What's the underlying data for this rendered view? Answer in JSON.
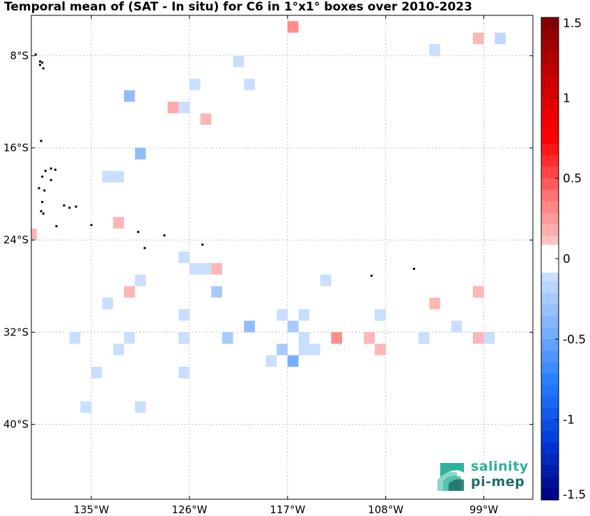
{
  "chart_data": {
    "type": "heatmap",
    "title": "Temporal mean of (SAT - In situ) for C6 in 1°x1° boxes over 2010-2023",
    "x_range_lon": [
      -140.5,
      -94.5
    ],
    "y_range_lat": [
      -4.5,
      -46.5
    ],
    "xticks": [
      {
        "lon": -135,
        "label": "135°W"
      },
      {
        "lon": -126,
        "label": "126°W"
      },
      {
        "lon": -117,
        "label": "117°W"
      },
      {
        "lon": -108,
        "label": "108°W"
      },
      {
        "lon": -99,
        "label": "99°W"
      }
    ],
    "yticks": [
      {
        "lat": -8,
        "label": "8°S"
      },
      {
        "lat": -16,
        "label": "16°S"
      },
      {
        "lat": -24,
        "label": "24°S"
      },
      {
        "lat": -32,
        "label": "32°S"
      },
      {
        "lat": -40,
        "label": "40°S"
      }
    ],
    "grid": true,
    "colorbar": {
      "min": -1.5,
      "max": 1.5,
      "ticks": [
        {
          "value": 1.5,
          "label": "1.5"
        },
        {
          "value": 1,
          "label": "1"
        },
        {
          "value": 0.5,
          "label": "0.5"
        },
        {
          "value": 0,
          "label": "0"
        },
        {
          "value": -0.5,
          "label": "-0.5"
        },
        {
          "value": -1,
          "label": "-1"
        },
        {
          "value": -1.5,
          "label": "-1.5"
        }
      ]
    },
    "cells": [
      {
        "lon": -116.5,
        "lat": -5.5,
        "value": 0.3
      },
      {
        "lon": -99.5,
        "lat": -6.5,
        "value": 0.15
      },
      {
        "lon": -97.5,
        "lat": -6.5,
        "value": -0.15
      },
      {
        "lon": -103.5,
        "lat": -7.5,
        "value": -0.1
      },
      {
        "lon": -121.5,
        "lat": -8.5,
        "value": -0.1
      },
      {
        "lon": -125.5,
        "lat": -10.5,
        "value": -0.1
      },
      {
        "lon": -120.5,
        "lat": -10.5,
        "value": -0.1
      },
      {
        "lon": -131.5,
        "lat": -11.5,
        "value": -0.35
      },
      {
        "lon": -127.5,
        "lat": -12.5,
        "value": 0.2
      },
      {
        "lon": -126.5,
        "lat": -12.5,
        "value": -0.1
      },
      {
        "lon": -124.5,
        "lat": -13.5,
        "value": 0.15
      },
      {
        "lon": -130.5,
        "lat": -16.5,
        "value": -0.35
      },
      {
        "lon": -133.5,
        "lat": -18.5,
        "value": -0.1
      },
      {
        "lon": -132.5,
        "lat": -18.5,
        "value": -0.1
      },
      {
        "lon": -132.5,
        "lat": -22.5,
        "value": 0.15
      },
      {
        "lon": -140.5,
        "lat": -23.5,
        "value": 0.15
      },
      {
        "lon": -126.5,
        "lat": -25.5,
        "value": -0.1
      },
      {
        "lon": -125.5,
        "lat": -26.5,
        "value": -0.1
      },
      {
        "lon": -124.5,
        "lat": -26.5,
        "value": -0.1
      },
      {
        "lon": -123.5,
        "lat": -26.5,
        "value": 0.15
      },
      {
        "lon": -130.5,
        "lat": -27.5,
        "value": -0.1
      },
      {
        "lon": -113.5,
        "lat": -27.5,
        "value": -0.1
      },
      {
        "lon": -131.5,
        "lat": -28.5,
        "value": 0.15
      },
      {
        "lon": -123.5,
        "lat": -28.5,
        "value": -0.25
      },
      {
        "lon": -99.5,
        "lat": -28.5,
        "value": 0.15
      },
      {
        "lon": -133.5,
        "lat": -29.5,
        "value": -0.1
      },
      {
        "lon": -103.5,
        "lat": -29.5,
        "value": 0.15
      },
      {
        "lon": -126.5,
        "lat": -30.5,
        "value": -0.1
      },
      {
        "lon": -117.5,
        "lat": -30.5,
        "value": -0.1
      },
      {
        "lon": -108.5,
        "lat": -30.5,
        "value": -0.1
      },
      {
        "lon": -120.5,
        "lat": -31.5,
        "value": -0.35
      },
      {
        "lon": -116.5,
        "lat": -31.5,
        "value": -0.25
      },
      {
        "lon": -101.5,
        "lat": -31.5,
        "value": -0.1
      },
      {
        "lon": -115.5,
        "lat": -30.5,
        "value": -0.1
      },
      {
        "lon": -136.5,
        "lat": -32.5,
        "value": -0.1
      },
      {
        "lon": -131.5,
        "lat": -32.5,
        "value": -0.1
      },
      {
        "lon": -126.5,
        "lat": -32.5,
        "value": -0.1
      },
      {
        "lon": -122.5,
        "lat": -32.5,
        "value": -0.25
      },
      {
        "lon": -115.5,
        "lat": -32.5,
        "value": -0.1
      },
      {
        "lon": -112.5,
        "lat": -32.5,
        "value": 0.3
      },
      {
        "lon": -109.5,
        "lat": -32.5,
        "value": 0.15
      },
      {
        "lon": -104.5,
        "lat": -32.5,
        "value": -0.1
      },
      {
        "lon": -99.5,
        "lat": -32.5,
        "value": 0.15
      },
      {
        "lon": -98.5,
        "lat": -32.5,
        "value": -0.1
      },
      {
        "lon": -132.5,
        "lat": -33.5,
        "value": -0.1
      },
      {
        "lon": -117.5,
        "lat": -33.5,
        "value": -0.25
      },
      {
        "lon": -115.5,
        "lat": -33.5,
        "value": -0.1
      },
      {
        "lon": -114.5,
        "lat": -33.5,
        "value": -0.1
      },
      {
        "lon": -108.5,
        "lat": -33.5,
        "value": 0.15
      },
      {
        "lon": -118.5,
        "lat": -34.5,
        "value": -0.1
      },
      {
        "lon": -116.5,
        "lat": -34.5,
        "value": -0.45
      },
      {
        "lon": -134.5,
        "lat": -35.5,
        "value": -0.1
      },
      {
        "lon": -126.5,
        "lat": -35.5,
        "value": -0.1
      },
      {
        "lon": -135.5,
        "lat": -38.5,
        "value": -0.1
      },
      {
        "lon": -130.5,
        "lat": -38.5,
        "value": -0.1
      }
    ],
    "land": [
      {
        "lon": -140.1,
        "lat": -7.9
      },
      {
        "lon": -139.7,
        "lat": -8.5
      },
      {
        "lon": -139.5,
        "lat": -8.6
      },
      {
        "lon": -139.7,
        "lat": -8.8
      },
      {
        "lon": -139.4,
        "lat": -9.1
      },
      {
        "lon": -139.6,
        "lat": -15.4
      },
      {
        "lon": -138.7,
        "lat": -17.8
      },
      {
        "lon": -138.3,
        "lat": -17.9
      },
      {
        "lon": -139.2,
        "lat": -18.0
      },
      {
        "lon": -139.5,
        "lat": -18.5
      },
      {
        "lon": -138.7,
        "lat": -18.8
      },
      {
        "lon": -139.8,
        "lat": -19.5
      },
      {
        "lon": -139.3,
        "lat": -19.7
      },
      {
        "lon": -139.5,
        "lat": -20.7
      },
      {
        "lon": -137.5,
        "lat": -21.0
      },
      {
        "lon": -137.0,
        "lat": -21.2
      },
      {
        "lon": -136.4,
        "lat": -21.1
      },
      {
        "lon": -139.6,
        "lat": -21.5
      },
      {
        "lon": -139.4,
        "lat": -21.7
      },
      {
        "lon": -138.2,
        "lat": -22.8
      },
      {
        "lon": -135.0,
        "lat": -22.7
      },
      {
        "lon": -130.7,
        "lat": -23.3
      },
      {
        "lon": -128.3,
        "lat": -23.6
      },
      {
        "lon": -124.8,
        "lat": -24.4
      },
      {
        "lon": -130.1,
        "lat": -24.7
      },
      {
        "lon": -109.3,
        "lat": -27.1
      },
      {
        "lon": -105.4,
        "lat": -26.5
      }
    ]
  },
  "logo": {
    "line1": "salinity",
    "line2": "pi-mep"
  },
  "colors": {
    "negative_max": "#00007a",
    "positive_max": "#7a0000",
    "zero": "#ffffff",
    "grid": "#bfbfbf"
  }
}
